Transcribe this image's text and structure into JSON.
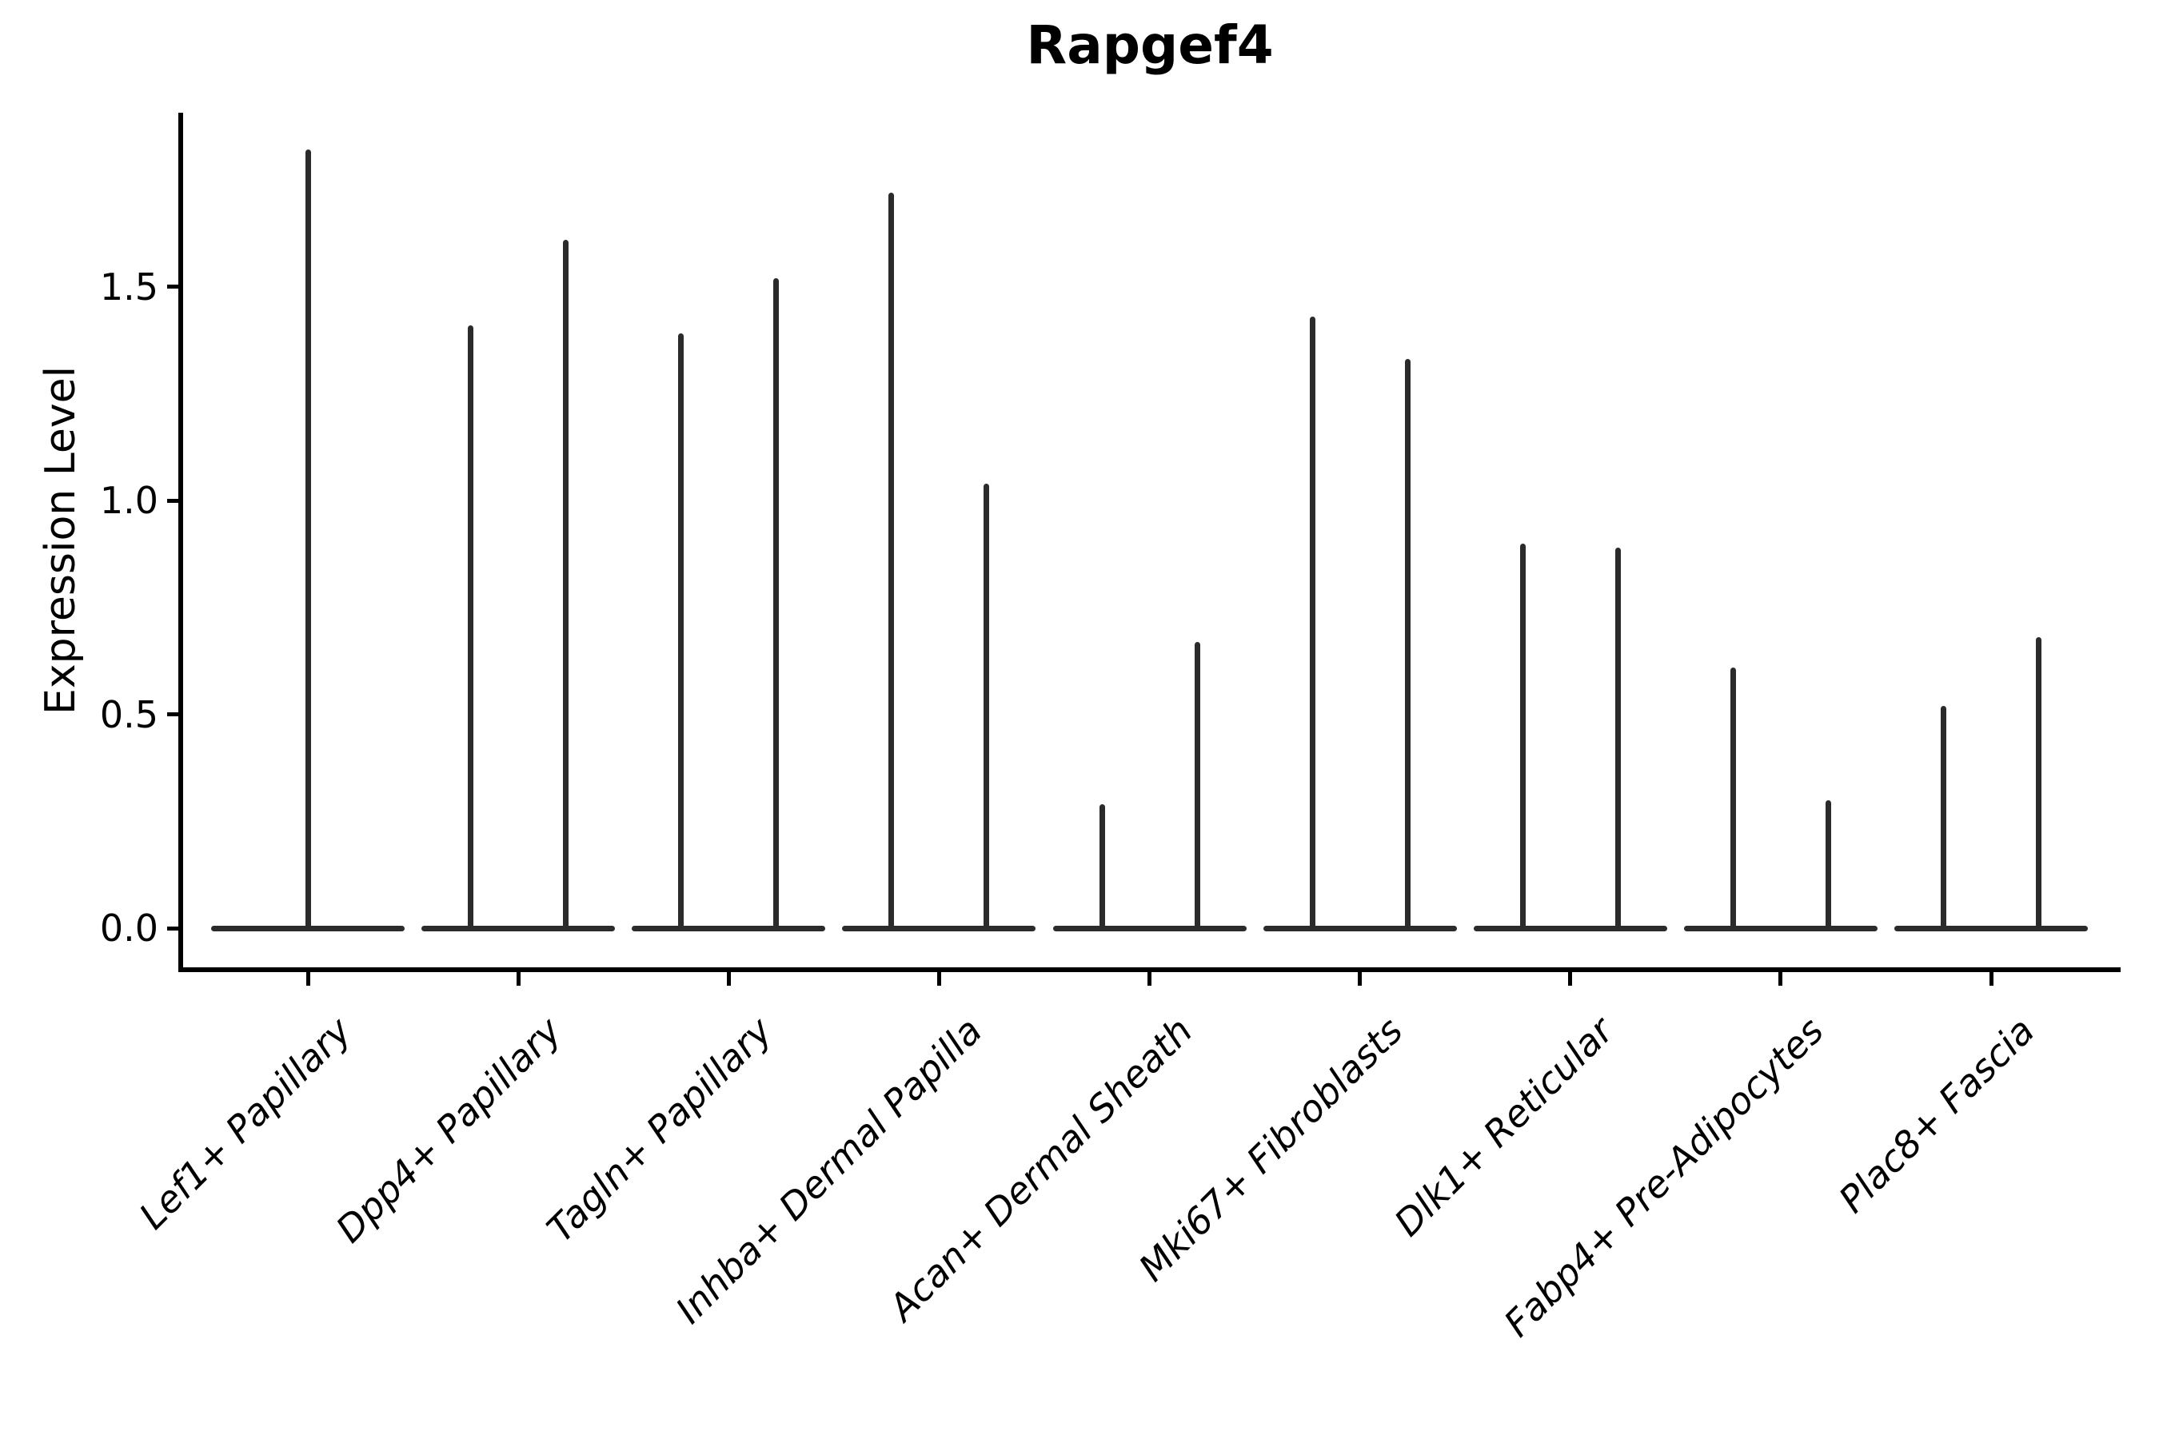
{
  "figure": {
    "title": "Rapgef4",
    "ylabel": "Expression Level"
  },
  "chart_data": {
    "type": "violin",
    "title": "Rapgef4",
    "xlabel": "",
    "ylabel": "Expression Level",
    "ylim": [
      0,
      1.92
    ],
    "yticks": [
      0.0,
      0.5,
      1.0,
      1.5
    ],
    "ytick_labels": [
      "0.0",
      "0.5",
      "1.0",
      "1.5"
    ],
    "grid": false,
    "legend": "none",
    "categories": [
      "Lef1+ Papillary",
      "Dpp4+ Papillary",
      "Tagln+ Papillary",
      "Inhba+ Dermal Papilla",
      "Acan+ Dermal Sheath",
      "Mki67+ Fibroblasts",
      "Dlk1+ Reticular",
      "Fabp4+ Pre-Adipocytes",
      "Plac8+ Fascia"
    ],
    "violins": [
      {
        "category": "Lef1+ Papillary",
        "baseline_value": 0.0,
        "max_values": [
          1.82
        ]
      },
      {
        "category": "Dpp4+ Papillary",
        "baseline_value": 0.0,
        "max_values": [
          1.41,
          1.61
        ]
      },
      {
        "category": "Tagln+ Papillary",
        "baseline_value": 0.0,
        "max_values": [
          1.39,
          1.52
        ]
      },
      {
        "category": "Inhba+ Dermal Papilla",
        "baseline_value": 0.0,
        "max_values": [
          1.72,
          1.04
        ]
      },
      {
        "category": "Acan+ Dermal Sheath",
        "baseline_value": 0.0,
        "max_values": [
          0.29,
          0.67
        ]
      },
      {
        "category": "Mki67+ Fibroblasts",
        "baseline_value": 0.0,
        "max_values": [
          1.43,
          1.33
        ]
      },
      {
        "category": "Dlk1+ Reticular",
        "baseline_value": 0.0,
        "max_values": [
          0.9,
          0.89
        ]
      },
      {
        "category": "Fabp4+ Pre-Adipocytes",
        "baseline_value": 0.0,
        "max_values": [
          0.61,
          0.3
        ]
      },
      {
        "category": "Plac8+ Fascia",
        "baseline_value": 0.0,
        "max_values": [
          0.52,
          0.68
        ]
      }
    ],
    "colors": {
      "violin": "#2b2b2b",
      "axis": "#000000",
      "background": "#ffffff"
    }
  }
}
